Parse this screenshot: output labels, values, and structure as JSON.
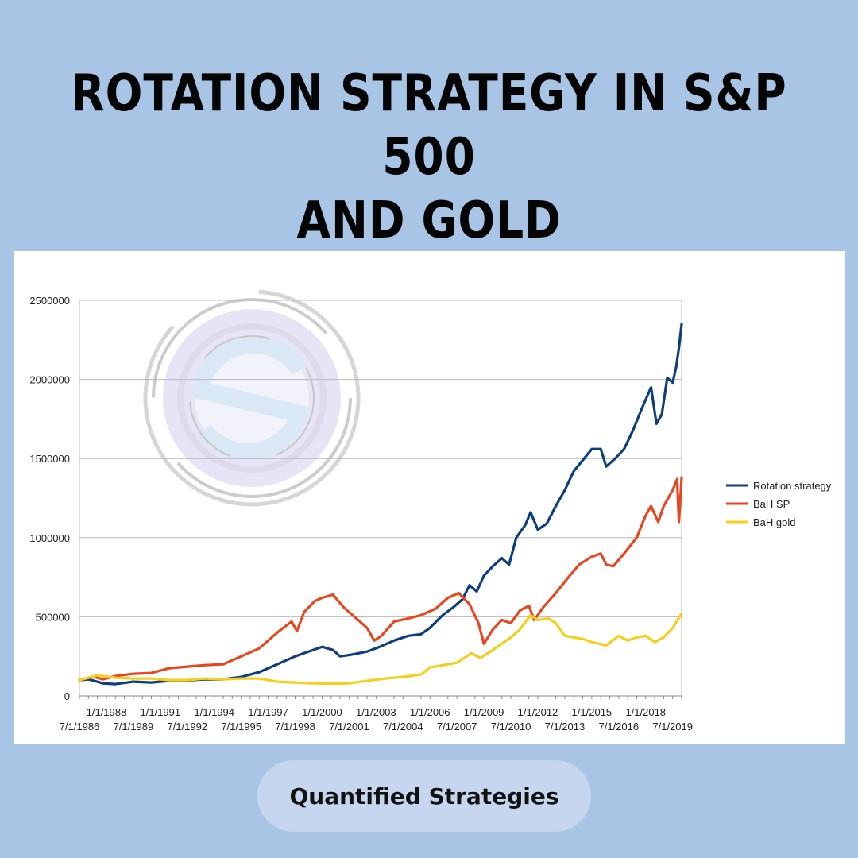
{
  "page": {
    "title_line1": "ROTATION STRATEGY IN S&P 500",
    "title_line2": "AND GOLD",
    "brand": "Quantified Strategies"
  },
  "chart_data": {
    "type": "line",
    "title": "",
    "xlabel": "",
    "ylabel": "",
    "ylim": [
      0,
      2500000
    ],
    "yticks": [
      0,
      500000,
      1000000,
      1500000,
      2000000,
      2500000
    ],
    "ytick_labels": [
      "0",
      "500000",
      "1000000",
      "1500000",
      "2000000",
      "2500000"
    ],
    "xlim": [
      1986.5,
      2020.0
    ],
    "xticks_top": [
      {
        "x": 1988.0,
        "label": "1/1/1988"
      },
      {
        "x": 1991.0,
        "label": "1/1/1991"
      },
      {
        "x": 1994.0,
        "label": "1/1/1994"
      },
      {
        "x": 1997.0,
        "label": "1/1/1997"
      },
      {
        "x": 2000.0,
        "label": "1/1/2000"
      },
      {
        "x": 2003.0,
        "label": "1/1/2003"
      },
      {
        "x": 2006.0,
        "label": "1/1/2006"
      },
      {
        "x": 2009.0,
        "label": "1/1/2009"
      },
      {
        "x": 2012.0,
        "label": "1/1/2012"
      },
      {
        "x": 2015.0,
        "label": "1/1/2015"
      },
      {
        "x": 2018.0,
        "label": "1/1/2018"
      }
    ],
    "xticks_bottom": [
      {
        "x": 1986.5,
        "label": "7/1/1986"
      },
      {
        "x": 1989.5,
        "label": "7/1/1989"
      },
      {
        "x": 1992.5,
        "label": "7/1/1992"
      },
      {
        "x": 1995.5,
        "label": "7/1/1995"
      },
      {
        "x": 1998.5,
        "label": "7/1/1998"
      },
      {
        "x": 2001.5,
        "label": "7/1/2001"
      },
      {
        "x": 2004.5,
        "label": "7/1/2004"
      },
      {
        "x": 2007.5,
        "label": "7/1/2007"
      },
      {
        "x": 2010.5,
        "label": "7/1/2010"
      },
      {
        "x": 2013.5,
        "label": "7/1/2013"
      },
      {
        "x": 2016.5,
        "label": "7/1/2016"
      },
      {
        "x": 2019.5,
        "label": "7/1/2019"
      }
    ],
    "grid": true,
    "legend_position": "right",
    "series": [
      {
        "name": "Rotation strategy",
        "color": "#0d3f7f",
        "points": [
          [
            1986.5,
            100000
          ],
          [
            1987.0,
            105000
          ],
          [
            1987.8,
            80000
          ],
          [
            1988.5,
            75000
          ],
          [
            1989.5,
            90000
          ],
          [
            1990.5,
            85000
          ],
          [
            1991.5,
            95000
          ],
          [
            1992.5,
            98000
          ],
          [
            1993.5,
            105000
          ],
          [
            1994.5,
            105000
          ],
          [
            1995.5,
            120000
          ],
          [
            1996.5,
            150000
          ],
          [
            1997.5,
            200000
          ],
          [
            1998.5,
            250000
          ],
          [
            1999.5,
            290000
          ],
          [
            2000.0,
            310000
          ],
          [
            2000.6,
            290000
          ],
          [
            2001.0,
            250000
          ],
          [
            2001.6,
            260000
          ],
          [
            2002.5,
            280000
          ],
          [
            2003.2,
            310000
          ],
          [
            2004.0,
            350000
          ],
          [
            2004.8,
            380000
          ],
          [
            2005.5,
            390000
          ],
          [
            2006.0,
            430000
          ],
          [
            2006.7,
            510000
          ],
          [
            2007.3,
            560000
          ],
          [
            2007.8,
            610000
          ],
          [
            2008.2,
            700000
          ],
          [
            2008.6,
            660000
          ],
          [
            2009.0,
            760000
          ],
          [
            2009.5,
            820000
          ],
          [
            2010.0,
            870000
          ],
          [
            2010.4,
            830000
          ],
          [
            2010.8,
            1000000
          ],
          [
            2011.3,
            1080000
          ],
          [
            2011.6,
            1160000
          ],
          [
            2012.0,
            1050000
          ],
          [
            2012.5,
            1090000
          ],
          [
            2013.0,
            1200000
          ],
          [
            2013.5,
            1300000
          ],
          [
            2014.0,
            1420000
          ],
          [
            2014.5,
            1490000
          ],
          [
            2015.0,
            1560000
          ],
          [
            2015.5,
            1560000
          ],
          [
            2015.8,
            1450000
          ],
          [
            2016.3,
            1500000
          ],
          [
            2016.8,
            1560000
          ],
          [
            2017.3,
            1680000
          ],
          [
            2017.8,
            1820000
          ],
          [
            2018.3,
            1950000
          ],
          [
            2018.6,
            1720000
          ],
          [
            2018.9,
            1780000
          ],
          [
            2019.2,
            2010000
          ],
          [
            2019.5,
            1980000
          ],
          [
            2019.7,
            2080000
          ],
          [
            2019.85,
            2200000
          ],
          [
            2020.0,
            2350000
          ]
        ]
      },
      {
        "name": "BaH SP",
        "color": "#e8461f",
        "points": [
          [
            1986.5,
            100000
          ],
          [
            1987.3,
            120000
          ],
          [
            1987.8,
            105000
          ],
          [
            1988.5,
            125000
          ],
          [
            1989.5,
            140000
          ],
          [
            1990.5,
            145000
          ],
          [
            1991.5,
            175000
          ],
          [
            1992.5,
            185000
          ],
          [
            1993.5,
            195000
          ],
          [
            1994.5,
            200000
          ],
          [
            1995.5,
            250000
          ],
          [
            1996.5,
            300000
          ],
          [
            1997.5,
            400000
          ],
          [
            1998.3,
            470000
          ],
          [
            1998.6,
            410000
          ],
          [
            1999.0,
            530000
          ],
          [
            1999.6,
            600000
          ],
          [
            2000.0,
            620000
          ],
          [
            2000.6,
            640000
          ],
          [
            2001.2,
            560000
          ],
          [
            2001.8,
            500000
          ],
          [
            2002.5,
            430000
          ],
          [
            2002.9,
            350000
          ],
          [
            2003.3,
            380000
          ],
          [
            2004.0,
            470000
          ],
          [
            2004.8,
            490000
          ],
          [
            2005.5,
            510000
          ],
          [
            2006.3,
            550000
          ],
          [
            2007.0,
            620000
          ],
          [
            2007.6,
            650000
          ],
          [
            2008.2,
            580000
          ],
          [
            2008.7,
            460000
          ],
          [
            2009.0,
            330000
          ],
          [
            2009.5,
            420000
          ],
          [
            2010.0,
            480000
          ],
          [
            2010.5,
            460000
          ],
          [
            2011.0,
            540000
          ],
          [
            2011.5,
            570000
          ],
          [
            2011.8,
            480000
          ],
          [
            2012.3,
            560000
          ],
          [
            2013.0,
            650000
          ],
          [
            2013.7,
            750000
          ],
          [
            2014.3,
            830000
          ],
          [
            2015.0,
            880000
          ],
          [
            2015.5,
            900000
          ],
          [
            2015.8,
            830000
          ],
          [
            2016.2,
            820000
          ],
          [
            2016.8,
            900000
          ],
          [
            2017.5,
            1000000
          ],
          [
            2018.0,
            1140000
          ],
          [
            2018.3,
            1200000
          ],
          [
            2018.7,
            1100000
          ],
          [
            2019.0,
            1200000
          ],
          [
            2019.5,
            1300000
          ],
          [
            2019.75,
            1370000
          ],
          [
            2019.85,
            1100000
          ],
          [
            2020.0,
            1380000
          ]
        ]
      },
      {
        "name": "BaH gold",
        "color": "#f5cf1c",
        "points": [
          [
            1986.5,
            100000
          ],
          [
            1987.5,
            130000
          ],
          [
            1988.5,
            115000
          ],
          [
            1989.5,
            110000
          ],
          [
            1990.5,
            110000
          ],
          [
            1991.5,
            100000
          ],
          [
            1992.5,
            100000
          ],
          [
            1993.5,
            110000
          ],
          [
            1994.5,
            105000
          ],
          [
            1995.5,
            110000
          ],
          [
            1996.5,
            110000
          ],
          [
            1997.5,
            90000
          ],
          [
            1998.5,
            85000
          ],
          [
            1999.5,
            80000
          ],
          [
            2000.5,
            78000
          ],
          [
            2001.5,
            80000
          ],
          [
            2002.5,
            95000
          ],
          [
            2003.5,
            110000
          ],
          [
            2004.5,
            120000
          ],
          [
            2005.5,
            135000
          ],
          [
            2006.0,
            180000
          ],
          [
            2006.5,
            190000
          ],
          [
            2007.5,
            210000
          ],
          [
            2008.3,
            270000
          ],
          [
            2008.8,
            240000
          ],
          [
            2009.5,
            290000
          ],
          [
            2010.0,
            330000
          ],
          [
            2010.5,
            370000
          ],
          [
            2011.0,
            420000
          ],
          [
            2011.6,
            510000
          ],
          [
            2012.0,
            480000
          ],
          [
            2012.6,
            490000
          ],
          [
            2013.0,
            460000
          ],
          [
            2013.5,
            380000
          ],
          [
            2014.0,
            370000
          ],
          [
            2014.5,
            360000
          ],
          [
            2015.0,
            340000
          ],
          [
            2015.8,
            320000
          ],
          [
            2016.5,
            380000
          ],
          [
            2017.0,
            350000
          ],
          [
            2017.5,
            370000
          ],
          [
            2018.0,
            380000
          ],
          [
            2018.5,
            340000
          ],
          [
            2019.0,
            370000
          ],
          [
            2019.5,
            430000
          ],
          [
            2020.0,
            520000
          ]
        ]
      }
    ]
  }
}
